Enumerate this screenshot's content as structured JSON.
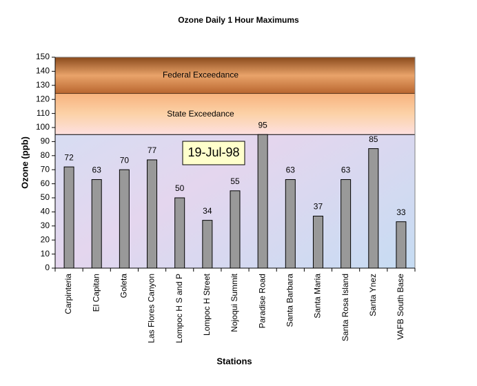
{
  "chart_data": {
    "type": "bar",
    "title": "Ozone Daily 1 Hour Maximums",
    "x_label": "Stations",
    "y_label": "Ozone (ppb)",
    "annotation": "19-Jul-98",
    "categories": [
      "Carpinteria",
      "El Capitan",
      "Goleta",
      "Las Flores Canyon",
      "Lompoc H S and P",
      "Lompoc H Street",
      "Nojoqui Summit",
      "Paradise Road",
      "Santa Barbara",
      "Santa Maria",
      "Santa Rosa Island",
      "Santa Ynez",
      "VAFB South Base"
    ],
    "values": [
      72,
      63,
      70,
      77,
      50,
      34,
      55,
      95,
      63,
      37,
      63,
      85,
      33
    ],
    "color": "#999999",
    "bands": [
      {
        "label": "Federal Exceedance",
        "from": 124,
        "to": 150
      },
      {
        "label": "State Exceedance",
        "from": 95,
        "to": 124
      }
    ],
    "ylim": [
      0,
      150
    ],
    "yticks": [
      0,
      10,
      20,
      30,
      40,
      50,
      60,
      70,
      80,
      90,
      100,
      110,
      120,
      130,
      140,
      150
    ]
  }
}
